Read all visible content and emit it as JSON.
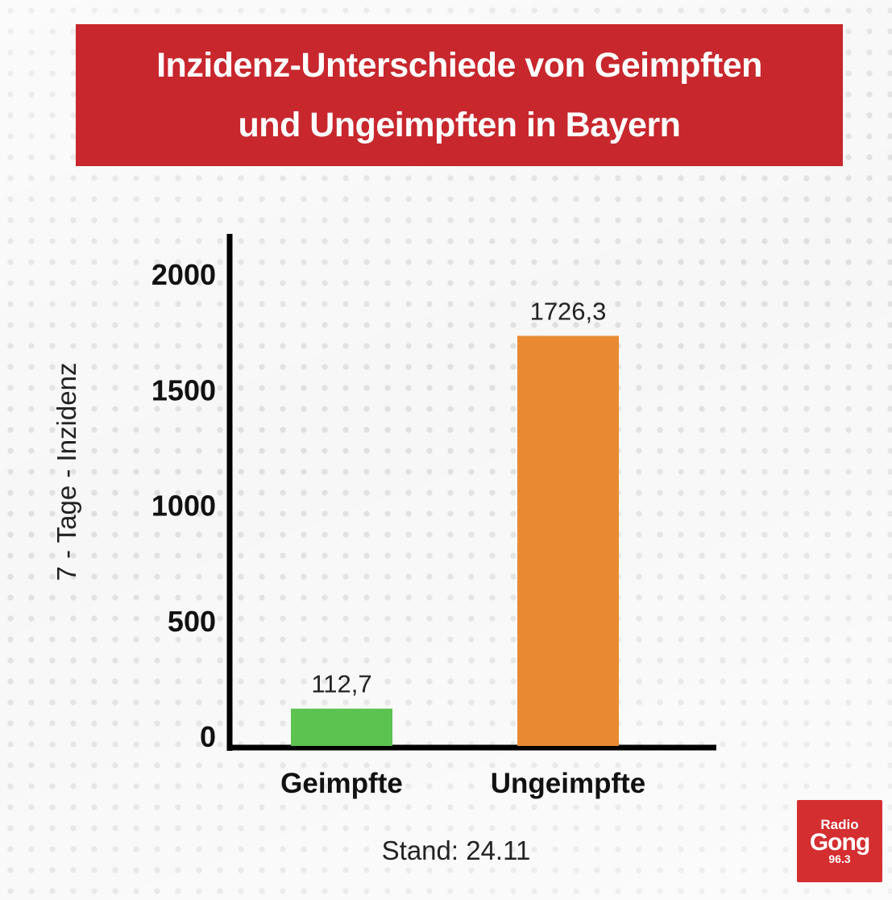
{
  "title": "Inzidenz-Unterschiede von Geimpften\nund Ungeimpften in Bayern",
  "chart_data": {
    "type": "bar",
    "categories": [
      "Geimpfte",
      "Ungeimpfte"
    ],
    "values": [
      112.7,
      1726.3
    ],
    "value_labels": [
      "112,7",
      "1726,3"
    ],
    "colors": [
      "#5cc250",
      "#e98a33"
    ],
    "ylabel": "7 - Tage - Inzidenz",
    "yticks": [
      0,
      500,
      1000,
      1500,
      2000
    ],
    "ylim": [
      0,
      2000
    ],
    "grid": false,
    "footnote": "Stand: 24.11"
  },
  "logo": {
    "line1": "Radio",
    "line2": "Gong",
    "line3": "96.3"
  }
}
